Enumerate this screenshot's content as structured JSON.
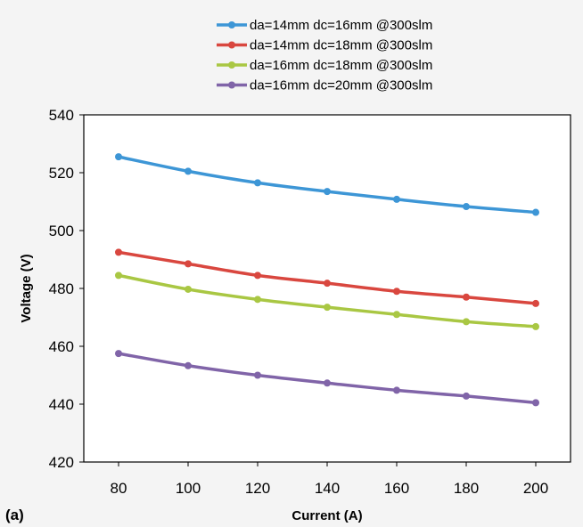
{
  "panel_label": "(a)",
  "chart_data": {
    "type": "line",
    "xlabel": "Current (A)",
    "ylabel": "Voltage (V)",
    "x": [
      80,
      100,
      120,
      140,
      160,
      180,
      200
    ],
    "xlim": [
      70,
      210
    ],
    "xticks": [
      80,
      100,
      120,
      140,
      160,
      180,
      200
    ],
    "ylim": [
      420,
      540
    ],
    "yticks": [
      420,
      440,
      460,
      480,
      500,
      520,
      540
    ],
    "grid": false,
    "legend_position": "top",
    "series": [
      {
        "name": "da=14mm dc=16mm @300slm",
        "color": "#3d96d6",
        "values": [
          525.5,
          520.5,
          516.5,
          513.5,
          510.8,
          508.3,
          506.3
        ]
      },
      {
        "name": "da=14mm dc=18mm @300slm",
        "color": "#d9473f",
        "values": [
          492.5,
          488.5,
          484.5,
          481.8,
          479.0,
          477.0,
          474.8
        ]
      },
      {
        "name": "da=16mm dc=18mm @300slm",
        "color": "#a9c743",
        "values": [
          484.5,
          479.7,
          476.2,
          473.5,
          471.0,
          468.5,
          466.8
        ]
      },
      {
        "name": "da=16mm dc=20mm @300slm",
        "color": "#8064a8",
        "values": [
          457.5,
          453.3,
          450.0,
          447.3,
          444.8,
          442.8,
          440.5
        ]
      }
    ]
  }
}
